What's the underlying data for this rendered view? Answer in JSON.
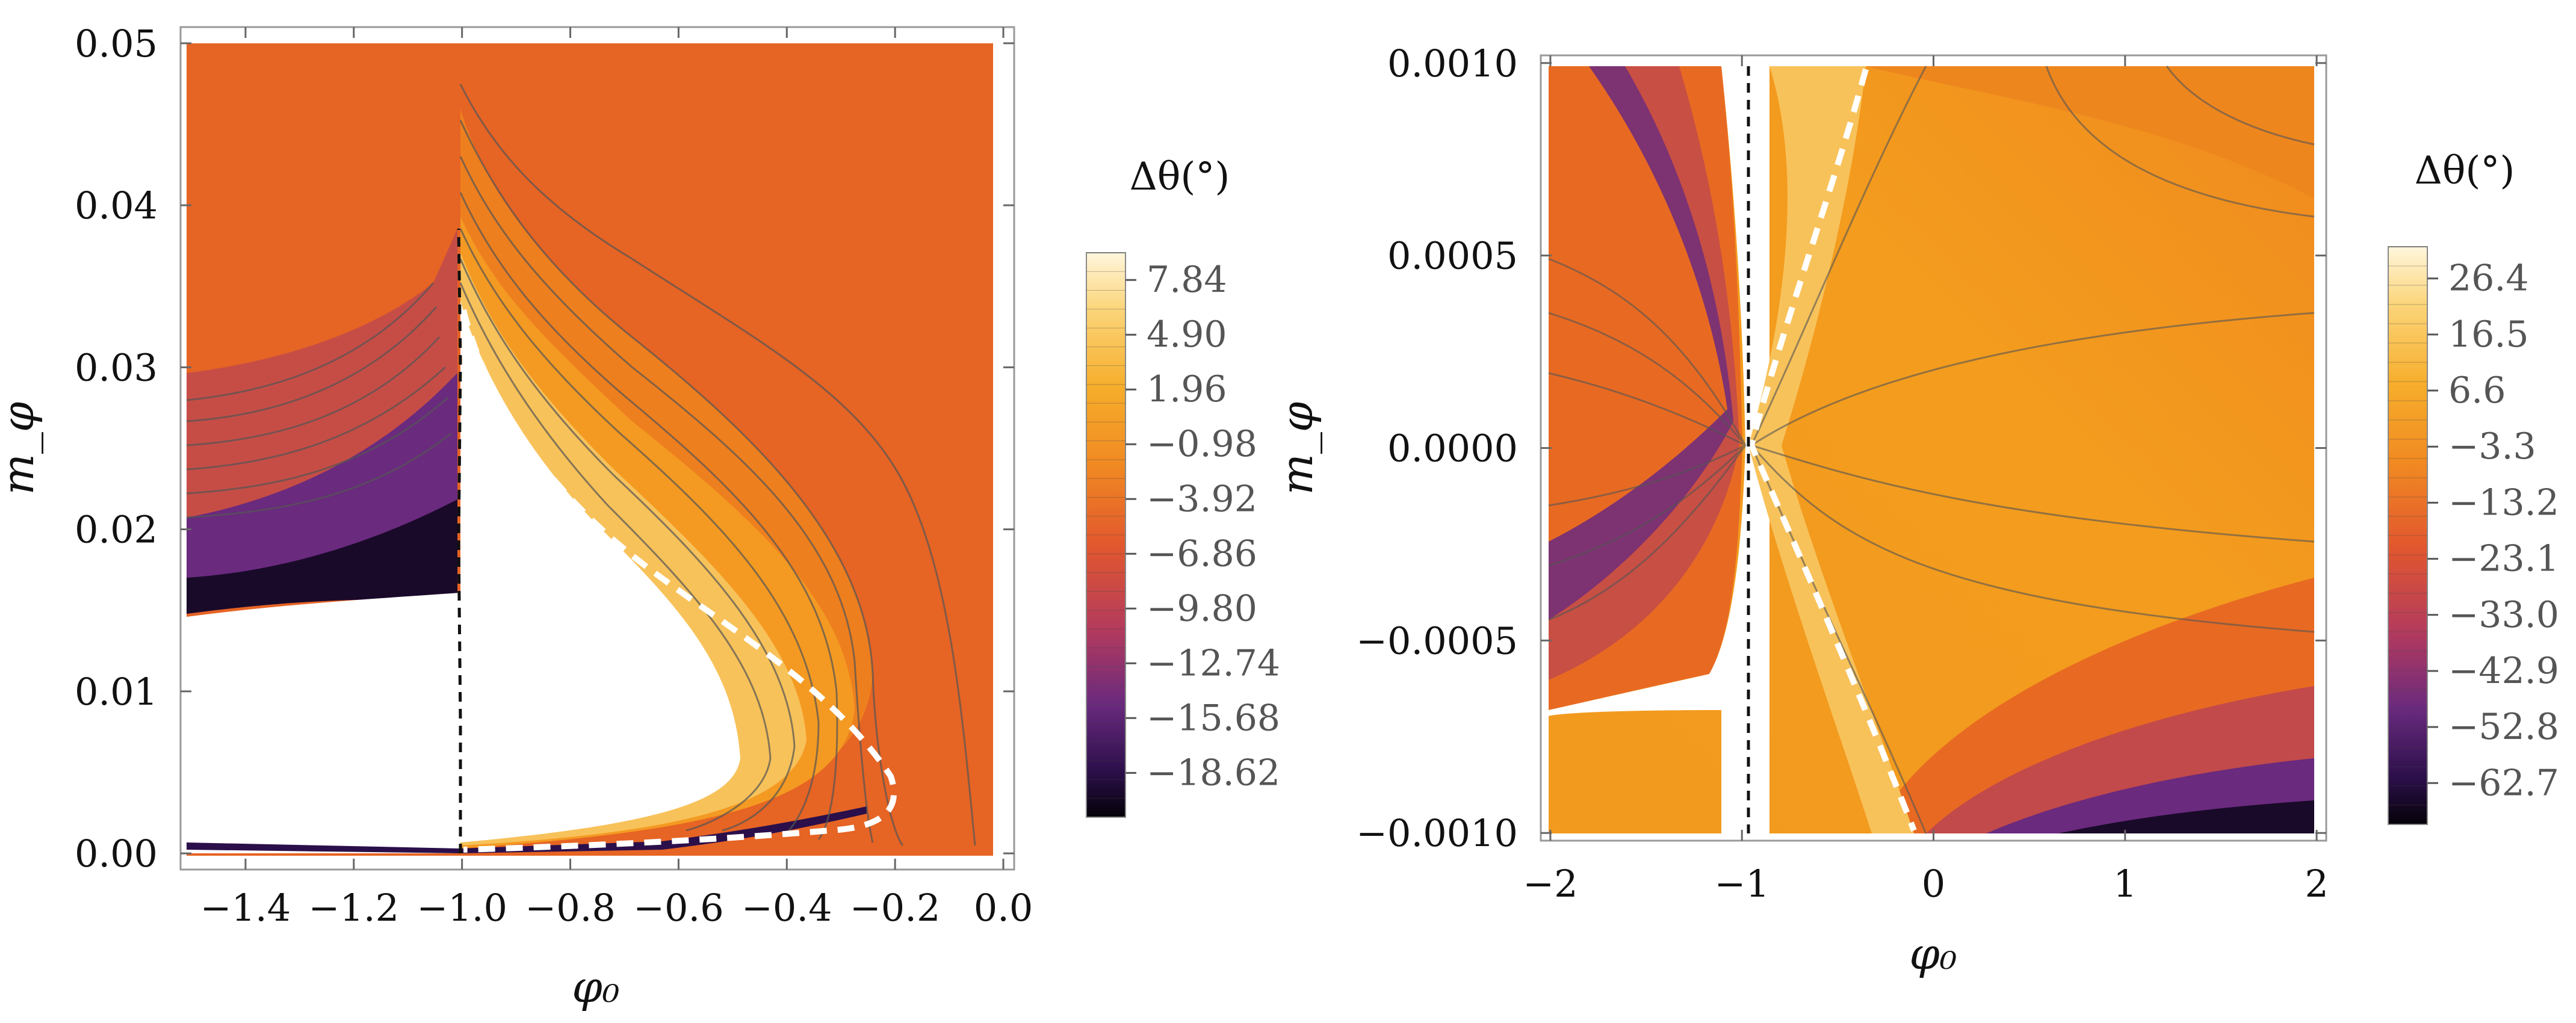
{
  "chart_data": [
    {
      "type": "contour",
      "panel": "left",
      "xlabel": "φ₀",
      "ylabel": "m_φ",
      "xlim": [
        -1.52,
        0.02
      ],
      "ylim": [
        -0.001,
        0.051
      ],
      "xticks": [
        -1.4,
        -1.2,
        -1.0,
        -0.8,
        -0.6,
        -0.4,
        -0.2,
        0.0
      ],
      "xtick_labels": [
        "−1.4",
        "−1.2",
        "−1.0",
        "−0.8",
        "−0.6",
        "−0.4",
        "−0.2",
        "0.0"
      ],
      "yticks": [
        0.0,
        0.01,
        0.02,
        0.03,
        0.04,
        0.05
      ],
      "ytick_labels": [
        "0.00",
        "0.01",
        "0.02",
        "0.03",
        "0.04",
        "0.05"
      ],
      "colorbar": {
        "title": "Δθ(°)",
        "range": [
          -21.0,
          9.3
        ],
        "ticks": [
          7.84,
          4.9,
          1.96,
          -0.98,
          -3.92,
          -6.86,
          -9.8,
          -12.74,
          -15.68,
          -18.62
        ],
        "tick_labels": [
          "7.84",
          "4.90",
          "1.96",
          "−0.98",
          "−3.92",
          "−6.86",
          "−9.80",
          "−12.74",
          "−15.68",
          "−18.62"
        ]
      },
      "white_dashed_curve": [
        [
          -1.0,
          0.033
        ],
        [
          -0.98,
          0.028
        ],
        [
          -0.9,
          0.022
        ],
        [
          -0.75,
          0.017
        ],
        [
          -0.55,
          0.013
        ],
        [
          -0.4,
          0.01
        ],
        [
          -0.25,
          0.007
        ],
        [
          -0.19,
          0.004
        ],
        [
          -0.22,
          0.0025
        ],
        [
          -0.4,
          0.0015
        ],
        [
          -0.7,
          0.0007
        ],
        [
          -0.99,
          0.0002
        ]
      ],
      "black_dashed_curve": [
        [
          -1.01,
          0.0
        ],
        [
          -1.01,
          0.015
        ],
        [
          -1.015,
          0.03
        ],
        [
          -1.01,
          0.038
        ]
      ]
    },
    {
      "type": "contour",
      "panel": "right",
      "xlabel": "φ₀",
      "ylabel": "m_φ",
      "xlim": [
        -2.05,
        2.05
      ],
      "ylim": [
        -0.00102,
        0.00102
      ],
      "xticks": [
        -2,
        -1,
        0,
        1,
        2
      ],
      "xtick_labels": [
        "−2",
        "−1",
        "0",
        "1",
        "2"
      ],
      "yticks": [
        -0.001,
        -0.0005,
        0.0,
        0.0005,
        0.001
      ],
      "ytick_labels": [
        "−0.0010",
        "−0.0005",
        "0.0000",
        "0.0005",
        "0.0010"
      ],
      "colorbar": {
        "title": "Δθ(°)",
        "range": [
          -70.0,
          32.0
        ],
        "ticks": [
          26.4,
          16.5,
          6.6,
          -3.3,
          -13.2,
          -23.1,
          -33.0,
          -42.9,
          -52.8,
          -62.7
        ],
        "tick_labels": [
          "26.4",
          "16.5",
          "6.6",
          "−3.3",
          "−13.2",
          "−23.1",
          "−33.0",
          "−42.9",
          "−52.8",
          "−62.7"
        ]
      },
      "white_dashed_curve": [
        [
          -0.1,
          -0.001
        ],
        [
          -0.2,
          -0.0008
        ],
        [
          -0.5,
          -0.0005
        ],
        [
          -0.95,
          -0.0001
        ],
        [
          -0.95,
          0.0001
        ],
        [
          -0.6,
          0.0004
        ],
        [
          -0.35,
          0.0008
        ],
        [
          -0.3,
          0.001
        ]
      ],
      "black_dashed_curve": [
        [
          -1.0,
          -0.001
        ],
        [
          -1.0,
          0.0
        ],
        [
          -1.0,
          0.001
        ]
      ]
    }
  ]
}
